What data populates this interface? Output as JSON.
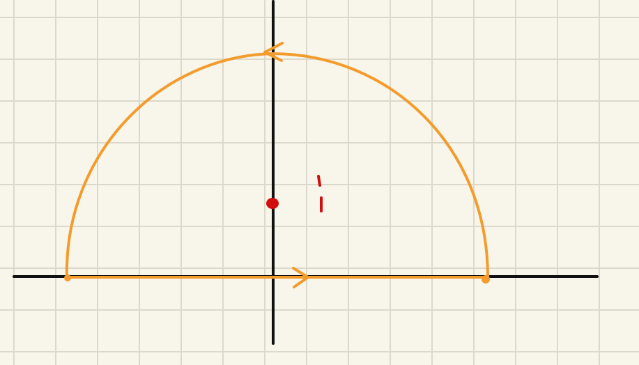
{
  "canvas": {
    "background": "#f8f5ea",
    "grid_color": "#dcd9cc"
  },
  "axes": {
    "color": "#111111"
  },
  "contour": {
    "color": "#f39c2e",
    "parts": [
      "semicircular-arc",
      "real-axis-segment"
    ],
    "arc_arrow_direction": "left",
    "segment_arrow_direction": "right"
  },
  "marks": {
    "color": "#d10d0d",
    "pole_label": "i"
  }
}
